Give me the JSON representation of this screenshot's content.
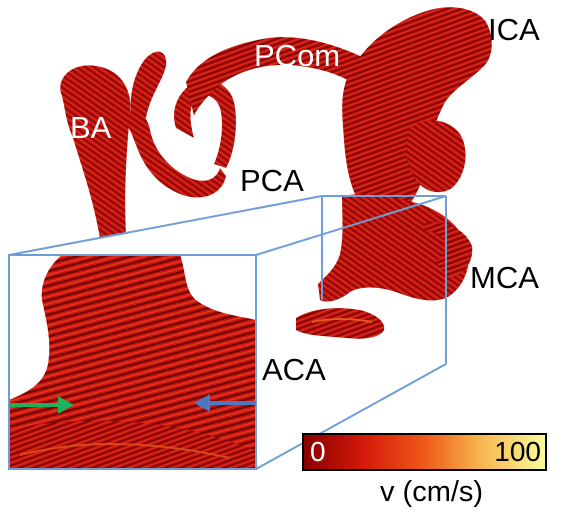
{
  "labels": {
    "ba": "BA",
    "pcom": "PCom",
    "ica": "ICA",
    "pca": "PCA",
    "mca": "MCA",
    "aca": "ACA"
  },
  "colorbar": {
    "min": "0",
    "max": "100",
    "unit": "v (cm/s)",
    "stops": [
      "#8a0000",
      "#d41a0a",
      "#ee5a18",
      "#f6b24a",
      "#fafa9a"
    ]
  },
  "colors": {
    "vessel": "#c4110d",
    "vessel_dark": "#7a0505",
    "inset_frame": "#6f9ed6",
    "arrow_left": "#1fb25a",
    "arrow_right": "#4a7ac4"
  }
}
